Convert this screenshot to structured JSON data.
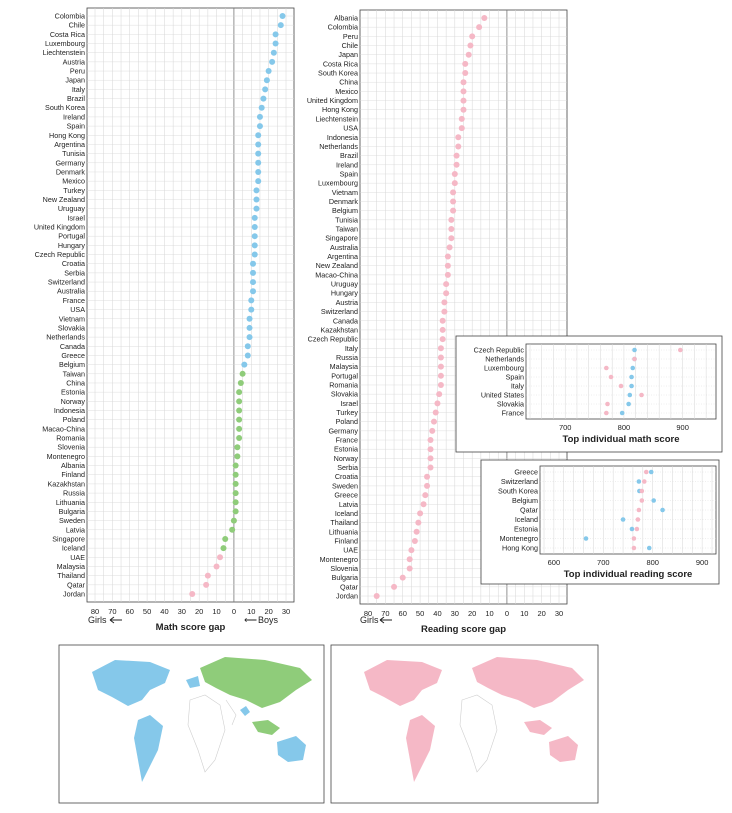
{
  "colors": {
    "boys": "#85c8ea",
    "girls": "#f5b8c6",
    "neutral": "#8fcc7a",
    "grid": "#d6d6d6"
  },
  "legend": {
    "girls": "Girls",
    "boys": "Boys"
  },
  "chart_data": [
    {
      "type": "scatter",
      "xlabel": "Math score gap",
      "xlim": [
        80,
        -30
      ],
      "ticks": [
        "80",
        "70",
        "60",
        "50",
        "40",
        "30",
        "20",
        "10",
        "0",
        "10",
        "20",
        "30"
      ],
      "categories": [
        "Colombia",
        "Chile",
        "Costa Rica",
        "Luxembourg",
        "Liechtenstein",
        "Austria",
        "Peru",
        "Japan",
        "Italy",
        "Brazil",
        "South Korea",
        "Ireland",
        "Spain",
        "Hong Kong",
        "Argentina",
        "Tunisia",
        "Germany",
        "Denmark",
        "Mexico",
        "Turkey",
        "New Zealand",
        "Uruguay",
        "Israel",
        "United Kingdom",
        "Portugal",
        "Hungary",
        "Czech Republic",
        "Croatia",
        "Serbia",
        "Switzerland",
        "Australia",
        "France",
        "USA",
        "Vietnam",
        "Slovakia",
        "Netherlands",
        "Canada",
        "Greece",
        "Belgium",
        "Taiwan",
        "China",
        "Estonia",
        "Norway",
        "Indonesia",
        "Poland",
        "Macao-China",
        "Romania",
        "Slovenia",
        "Montenegro",
        "Albania",
        "Finland",
        "Kazakhstan",
        "Russia",
        "Lithuania",
        "Bulgaria",
        "Sweden",
        "Latvia",
        "Singapore",
        "Iceland",
        "UAE",
        "Malaysia",
        "Thailand",
        "Qatar",
        "Jordan"
      ],
      "values": [
        -28,
        -27,
        -24,
        -24,
        -23,
        -22,
        -20,
        -19,
        -18,
        -17,
        -16,
        -15,
        -15,
        -14,
        -14,
        -14,
        -14,
        -14,
        -14,
        -13,
        -13,
        -13,
        -12,
        -12,
        -12,
        -12,
        -12,
        -11,
        -11,
        -11,
        -11,
        -10,
        -10,
        -9,
        -9,
        -9,
        -8,
        -8,
        -6,
        -5,
        -4,
        -3,
        -3,
        -3,
        -3,
        -3,
        -3,
        -2,
        -2,
        -1,
        -1,
        -1,
        -1,
        -1,
        -1,
        0,
        1,
        5,
        6,
        8,
        10,
        15,
        16,
        24
      ]
    },
    {
      "type": "scatter",
      "xlabel": "Reading score gap",
      "xlim": [
        80,
        -30
      ],
      "ticks": [
        "80",
        "70",
        "60",
        "50",
        "40",
        "30",
        "20",
        "10",
        "0",
        "10",
        "20",
        "30"
      ],
      "categories": [
        "Albania",
        "Colombia",
        "Peru",
        "Chile",
        "Japan",
        "Costa Rica",
        "South Korea",
        "China",
        "Mexico",
        "United Kingdom",
        "Hong Kong",
        "Liechtenstein",
        "USA",
        "Indonesia",
        "Netherlands",
        "Brazil",
        "Ireland",
        "Spain",
        "Luxembourg",
        "Vietnam",
        "Denmark",
        "Belgium",
        "Tunisia",
        "Taiwan",
        "Singapore",
        "Australia",
        "Argentina",
        "New Zealand",
        "Macao-China",
        "Uruguay",
        "Hungary",
        "Austria",
        "Switzerland",
        "Canada",
        "Kazakhstan",
        "Czech Republic",
        "Italy",
        "Russia",
        "Malaysia",
        "Portugal",
        "Romania",
        "Slovakia",
        "Israel",
        "Turkey",
        "Poland",
        "Germany",
        "France",
        "Estonia",
        "Norway",
        "Serbia",
        "Croatia",
        "Sweden",
        "Greece",
        "Latvia",
        "Iceland",
        "Thailand",
        "Lithuania",
        "Finland",
        "UAE",
        "Montenegro",
        "Slovenia",
        "Bulgaria",
        "Qatar",
        "Jordan"
      ],
      "values": [
        13,
        16,
        20,
        21,
        22,
        24,
        24,
        25,
        25,
        25,
        25,
        26,
        26,
        28,
        28,
        29,
        29,
        30,
        30,
        31,
        31,
        31,
        32,
        32,
        32,
        33,
        34,
        34,
        34,
        35,
        35,
        36,
        36,
        37,
        37,
        37,
        38,
        38,
        38,
        38,
        38,
        39,
        40,
        41,
        42,
        43,
        44,
        44,
        44,
        44,
        46,
        46,
        47,
        48,
        50,
        51,
        52,
        53,
        55,
        56,
        56,
        60,
        65,
        75
      ]
    },
    {
      "type": "scatter",
      "xlabel": "Top individual math score",
      "xlim": [
        640,
        950
      ],
      "ticks": [
        "700",
        "800",
        "900"
      ],
      "categories": [
        "Czech Republic",
        "Netherlands",
        "Luxembourg",
        "Spain",
        "Italy",
        "United States",
        "Slovakia",
        "France"
      ],
      "series": [
        {
          "name": "Boys",
          "values": [
            818,
            818,
            815,
            813,
            813,
            810,
            808,
            797
          ]
        },
        {
          "name": "Girls",
          "values": [
            896,
            818,
            770,
            778,
            795,
            830,
            772,
            770
          ]
        }
      ]
    },
    {
      "type": "scatter",
      "xlabel": "Top individual reading score",
      "xlim": [
        580,
        920
      ],
      "ticks": [
        "600",
        "700",
        "800",
        "900"
      ],
      "categories": [
        "Greece",
        "Switzerland",
        "South Korea",
        "Belgium",
        "Qatar",
        "Iceland",
        "Estonia",
        "Montenegro",
        "Hong Kong"
      ],
      "series": [
        {
          "name": "Boys",
          "values": [
            797,
            772,
            773,
            802,
            820,
            740,
            758,
            665,
            793
          ]
        },
        {
          "name": "Girls",
          "values": [
            787,
            783,
            778,
            778,
            772,
            770,
            768,
            762,
            762
          ]
        }
      ]
    }
  ]
}
